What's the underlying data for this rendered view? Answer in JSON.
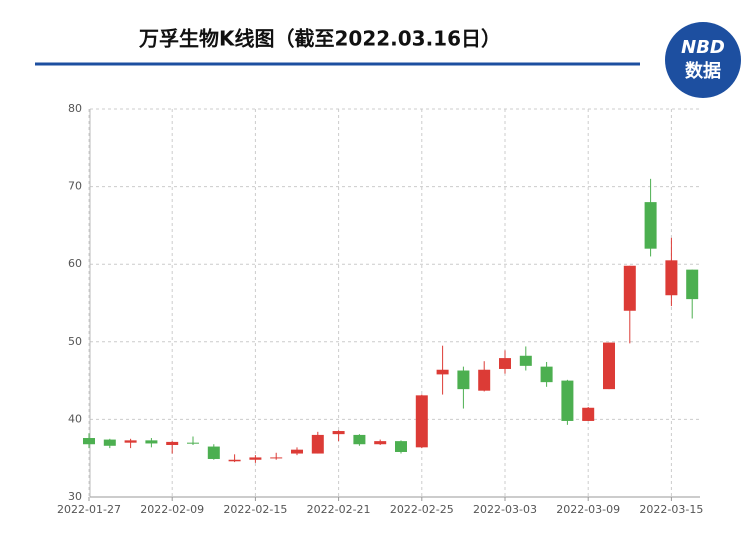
{
  "logo": {
    "top": "NBD",
    "bottom": "数据"
  },
  "chart_data": {
    "type": "candlestick",
    "title": "万孚生物K线图（截至2022.03.16日）",
    "categories": [
      "2022-01-27",
      null,
      null,
      null,
      "2022-02-09",
      null,
      null,
      null,
      "2022-02-15",
      null,
      null,
      null,
      "2022-02-21",
      null,
      null,
      null,
      "2022-02-25",
      null,
      null,
      null,
      "2022-03-03",
      null,
      null,
      null,
      "2022-03-09",
      null,
      null,
      null,
      "2022-03-15",
      null
    ],
    "open": [
      37.6,
      37.4,
      37.0,
      37.3,
      36.7,
      37.0,
      36.5,
      34.6,
      34.8,
      35.0,
      35.6,
      35.6,
      38.1,
      38.0,
      36.8,
      37.2,
      36.4,
      45.8,
      46.3,
      43.7,
      46.5,
      48.2,
      46.8,
      45.0,
      39.8,
      43.9,
      54.0,
      68.0,
      56.0,
      59.3
    ],
    "close": [
      36.8,
      36.6,
      37.3,
      36.9,
      37.1,
      36.9,
      34.9,
      34.8,
      35.1,
      35.1,
      36.1,
      38.0,
      38.5,
      36.8,
      37.2,
      35.8,
      43.1,
      46.4,
      43.9,
      46.4,
      47.9,
      46.9,
      44.8,
      39.8,
      41.5,
      49.9,
      59.8,
      62.0,
      60.5,
      55.5
    ],
    "high": [
      38.2,
      37.5,
      37.5,
      37.6,
      37.2,
      37.8,
      36.8,
      35.5,
      35.4,
      35.7,
      36.4,
      38.4,
      38.6,
      38.1,
      37.4,
      37.3,
      43.2,
      49.5,
      46.8,
      47.5,
      48.9,
      49.4,
      47.4,
      45.1,
      41.6,
      49.9,
      59.8,
      71.0,
      63.4,
      59.3
    ],
    "low": [
      36.3,
      36.3,
      36.3,
      36.4,
      35.6,
      36.7,
      34.8,
      34.5,
      34.4,
      34.8,
      35.4,
      35.6,
      37.2,
      36.6,
      36.7,
      35.6,
      36.3,
      43.2,
      41.4,
      43.6,
      45.9,
      46.3,
      44.2,
      39.3,
      39.8,
      43.9,
      49.8,
      61.0,
      54.6,
      53.0
    ],
    "up_color": "#dc3b36",
    "down_color": "#4caf50",
    "ylim": [
      30,
      80
    ],
    "yticks": [
      30,
      40,
      50,
      60,
      70,
      80
    ],
    "grid": true
  }
}
